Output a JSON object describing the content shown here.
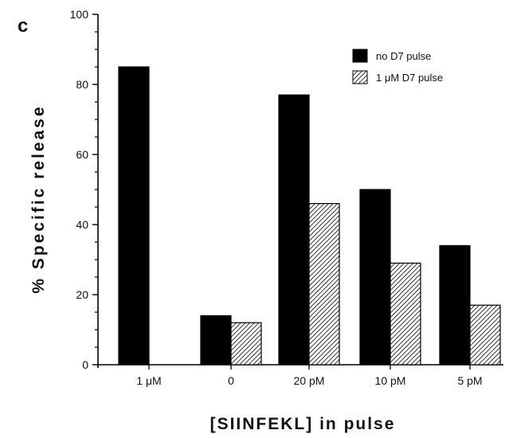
{
  "panel_label": "c",
  "chart_data": {
    "type": "bar",
    "categories": [
      "1 μM",
      "0",
      "20 pM",
      "10 pM",
      "5 pM"
    ],
    "series": [
      {
        "name": "no D7 pulse",
        "values": [
          85,
          14,
          77,
          50,
          34
        ],
        "color": "#000000",
        "pattern": "solid"
      },
      {
        "name": "1 μM D7 pulse",
        "values": [
          null,
          12,
          46,
          29,
          17
        ],
        "color": "#000000",
        "pattern": "hatched"
      }
    ],
    "ylabel": "% Specific release",
    "xlabel": "[SIINFEKL] in pulse",
    "ylim": [
      0,
      100
    ],
    "yticks": [
      0,
      20,
      40,
      60,
      80,
      100
    ],
    "legend_position": "top-right",
    "grid": false
  }
}
